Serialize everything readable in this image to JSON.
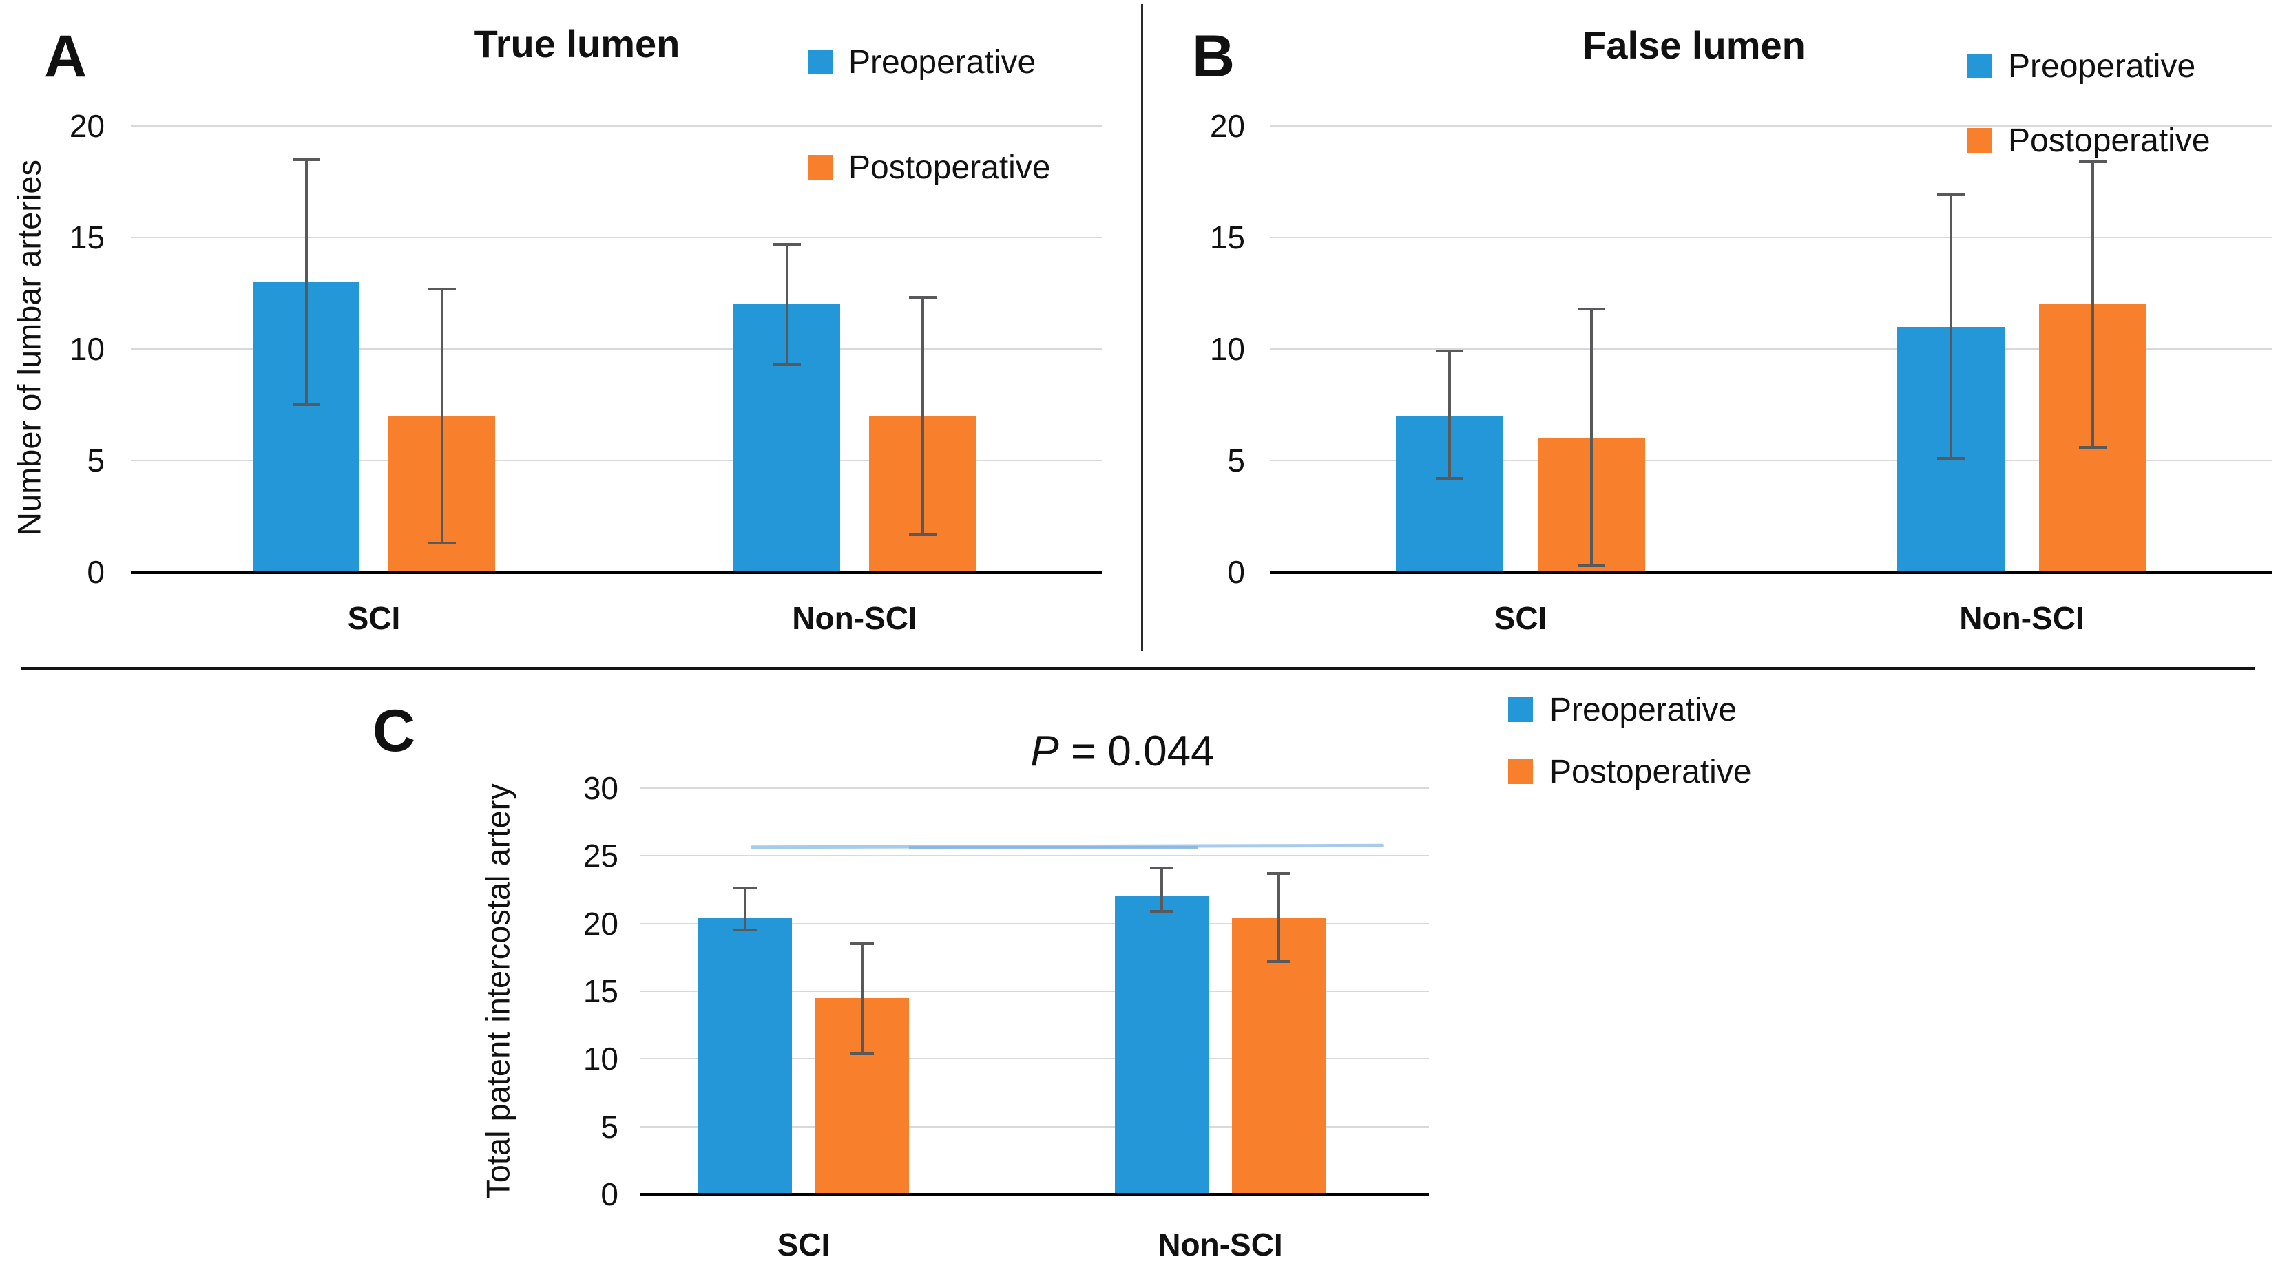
{
  "figure_background": "#ffffff",
  "panel_letters": [
    "A",
    "B",
    "C"
  ],
  "colors": {
    "preoperative": "#2397D8",
    "postoperative": "#F8802C",
    "error_bar": "#58595B",
    "gridline": "#D9D9D9",
    "axis": "#000000",
    "divider": "#2B2B2B",
    "p_line": "#A8CBEC",
    "p_line_dark": "#85B3DF",
    "text": "#111111"
  },
  "chart_data": [
    {
      "panel": "A",
      "type": "bar",
      "title": "True lumen",
      "ylabel": "Number of lumbar arteries",
      "xlabel": "",
      "categories": [
        "SCI",
        "Non-SCI"
      ],
      "series": [
        {
          "name": "Preoperative",
          "values": [
            13,
            12
          ],
          "error_low": [
            7.5,
            9.3
          ],
          "error_high": [
            18.5,
            14.7
          ]
        },
        {
          "name": "Postoperative",
          "values": [
            7,
            7
          ],
          "error_low": [
            1.3,
            1.7
          ],
          "error_high": [
            12.7,
            12.3
          ]
        }
      ],
      "ylim": [
        0,
        20
      ],
      "ytick_step": 5,
      "yticks": [
        0,
        5,
        10,
        15,
        20
      ],
      "grid": true,
      "legend_position": "top-right"
    },
    {
      "panel": "B",
      "type": "bar",
      "title": "False lumen",
      "ylabel": "",
      "xlabel": "",
      "categories": [
        "SCI",
        "Non-SCI"
      ],
      "series": [
        {
          "name": "Preoperative",
          "values": [
            7,
            11
          ],
          "error_low": [
            4.2,
            5.1
          ],
          "error_high": [
            9.9,
            16.9
          ]
        },
        {
          "name": "Postoperative",
          "values": [
            6,
            12
          ],
          "error_low": [
            0.3,
            5.6
          ],
          "error_high": [
            11.8,
            18.4
          ]
        }
      ],
      "ylim": [
        0,
        20
      ],
      "ytick_step": 5,
      "yticks": [
        0,
        5,
        10,
        15,
        20
      ],
      "grid": true,
      "legend_position": "top-right"
    },
    {
      "panel": "C",
      "type": "bar",
      "title": "",
      "ylabel": "Total patent intercostal artery",
      "xlabel": "",
      "categories": [
        "SCI",
        "Non-SCI"
      ],
      "series": [
        {
          "name": "Preoperative",
          "values": [
            20.4,
            22.0
          ],
          "error_low": [
            19.5,
            20.9
          ],
          "error_high": [
            22.6,
            24.1
          ]
        },
        {
          "name": "Postoperative",
          "values": [
            14.5,
            20.4
          ],
          "error_low": [
            10.4,
            17.2
          ],
          "error_high": [
            18.5,
            23.7
          ]
        }
      ],
      "ylim": [
        0,
        30
      ],
      "ytick_step": 5,
      "yticks": [
        0,
        5,
        10,
        15,
        20,
        25,
        30
      ],
      "grid": true,
      "legend_position": "top-right",
      "annotation": {
        "text": "P = 0.044",
        "p_label": "P",
        "p_rest": " = 0.044",
        "line_between": [
          "SCI",
          "Non-SCI"
        ],
        "line_y_value": 25.6
      }
    }
  ]
}
